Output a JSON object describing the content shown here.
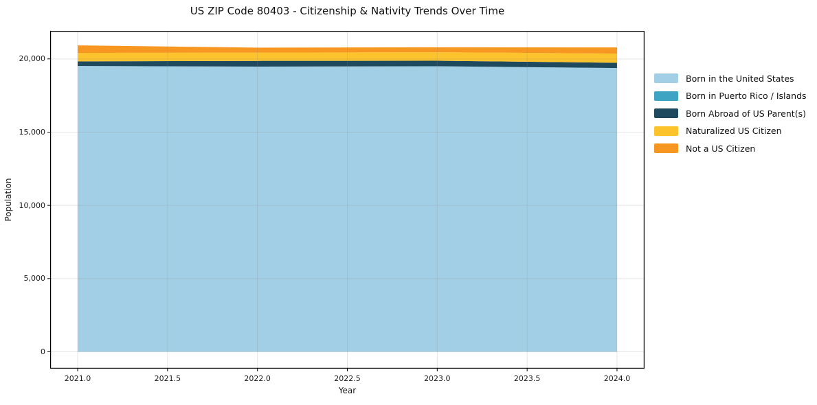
{
  "figure": {
    "background": "#ffffff",
    "text_color": "#111111",
    "spine_color": "#000000",
    "grid_color": "#8a8a8a"
  },
  "chart_data": {
    "type": "area",
    "stacked": true,
    "title": "US ZIP Code 80403 - Citizenship & Nativity Trends Over Time",
    "xlabel": "Year",
    "ylabel": "Population",
    "x": [
      2021,
      2022,
      2023,
      2024
    ],
    "series": [
      {
        "name": "Born in the United States",
        "color": "#a2cfe6",
        "values": [
          19520,
          19475,
          19500,
          19380
        ]
      },
      {
        "name": "Born in Puerto Rico / Islands",
        "color": "#3da5c3",
        "values": [
          0,
          0,
          0,
          0
        ]
      },
      {
        "name": "Born Abroad of US Parent(s)",
        "color": "#1f4a5e",
        "values": [
          310,
          390,
          375,
          355
        ]
      },
      {
        "name": "Naturalized US Citizen",
        "color": "#fcc32d",
        "values": [
          580,
          565,
          580,
          630
        ]
      },
      {
        "name": "Not a US Citizen",
        "color": "#f79722",
        "values": [
          515,
          340,
          340,
          420
        ]
      }
    ],
    "totals": [
      20925,
      20770,
      20795,
      20785
    ],
    "xlim": [
      2020.847,
      2024.153
    ],
    "ylim": [
      -1148,
      21913
    ],
    "xticks": {
      "values": [
        2021,
        2021.5,
        2022,
        2022.5,
        2023,
        2023.5,
        2024
      ],
      "labels": [
        "2021.0",
        "2021.5",
        "2022.0",
        "2022.5",
        "2023.0",
        "2023.5",
        "2024.0"
      ]
    },
    "yticks": {
      "values": [
        0,
        5000,
        10000,
        15000,
        20000
      ],
      "labels": [
        "0",
        "5,000",
        "10,000",
        "15,000",
        "20,000"
      ]
    },
    "grid": true,
    "legend_position": "right"
  }
}
